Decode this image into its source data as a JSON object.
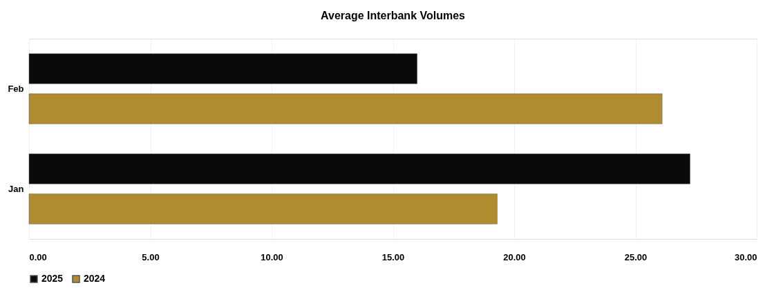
{
  "chart_data": {
    "type": "bar",
    "orientation": "horizontal",
    "title": "Average Interbank Volumes",
    "categories": [
      "Feb",
      "Jan"
    ],
    "series": [
      {
        "name": "2025",
        "color": "#0a0a0a",
        "values": [
          16.0,
          27.25
        ]
      },
      {
        "name": "2024",
        "color": "#b08c30",
        "values": [
          26.1,
          19.3
        ]
      }
    ],
    "xlim": [
      0,
      30
    ],
    "xticks": [
      {
        "value": 0,
        "label": "0.00"
      },
      {
        "value": 5,
        "label": "5.00"
      },
      {
        "value": 10,
        "label": "10.00"
      },
      {
        "value": 15,
        "label": "15.00"
      },
      {
        "value": 20,
        "label": "20.00"
      },
      {
        "value": 25,
        "label": "25.00"
      },
      {
        "value": 30,
        "label": "30.00"
      }
    ],
    "grid": "x",
    "legend": "bottom"
  }
}
